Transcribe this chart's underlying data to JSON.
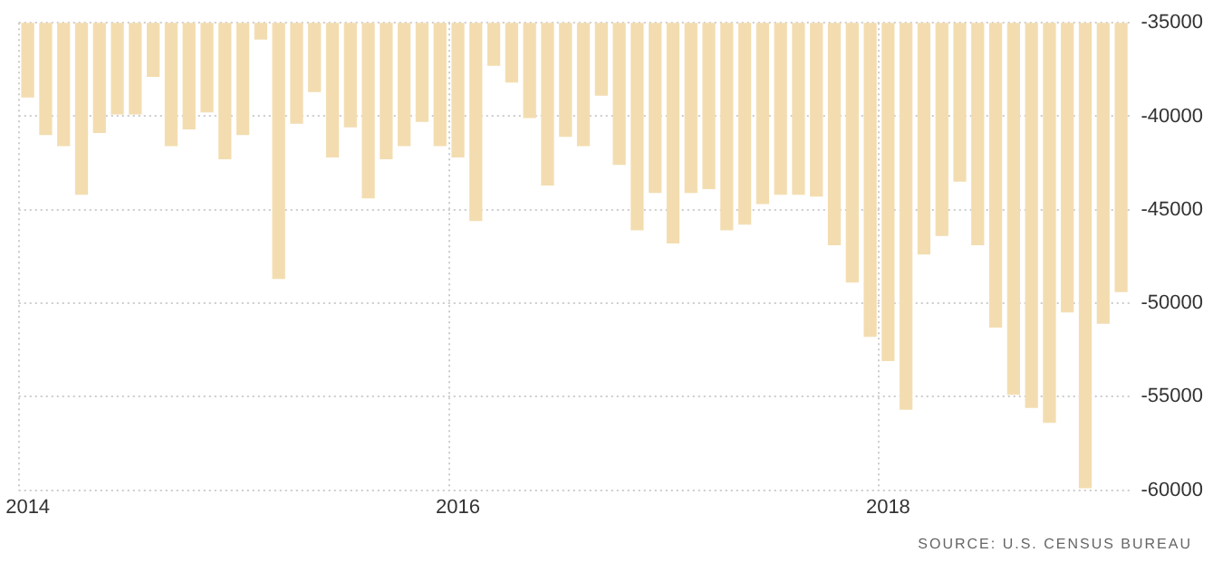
{
  "chart_data": {
    "type": "bar",
    "categories": [
      "2014",
      null,
      null,
      null,
      null,
      null,
      null,
      null,
      null,
      null,
      null,
      null,
      null,
      null,
      null,
      null,
      null,
      null,
      null,
      null,
      null,
      null,
      null,
      null,
      "2016",
      null,
      null,
      null,
      null,
      null,
      null,
      null,
      null,
      null,
      null,
      null,
      null,
      null,
      null,
      null,
      null,
      null,
      null,
      null,
      null,
      null,
      null,
      null,
      "2018",
      null,
      null,
      null,
      null,
      null,
      null,
      null,
      null,
      null,
      null,
      null,
      null,
      null
    ],
    "values": [
      -39000,
      -41000,
      -41600,
      -44200,
      -40900,
      -39900,
      -39900,
      -37900,
      -41600,
      -40700,
      -39800,
      -42300,
      -41000,
      -35900,
      -48700,
      -40400,
      -38700,
      -42200,
      -40600,
      -44400,
      -42300,
      -41600,
      -40300,
      -41600,
      -42200,
      -45600,
      -37300,
      -38200,
      -40100,
      -43700,
      -41100,
      -41600,
      -38900,
      -42600,
      -46100,
      -44100,
      -46800,
      -44100,
      -43900,
      -46100,
      -45800,
      -44700,
      -44200,
      -44200,
      -44300,
      -46900,
      -48900,
      -51800,
      -53100,
      -55700,
      -47400,
      -46400,
      -43500,
      -46900,
      -51300,
      -54900,
      -55600,
      -56400,
      -50500,
      -59900,
      -51100,
      -49400
    ],
    "color": "#f3ddb0",
    "ylim": [
      -60000,
      -35000
    ],
    "yticks": [
      -60000,
      -55000,
      -50000,
      -45000,
      -40000,
      -35000
    ],
    "grid": true,
    "legend": false,
    "annotations": [
      "SOURCE: U.S. CENSUS BUREAU"
    ]
  }
}
